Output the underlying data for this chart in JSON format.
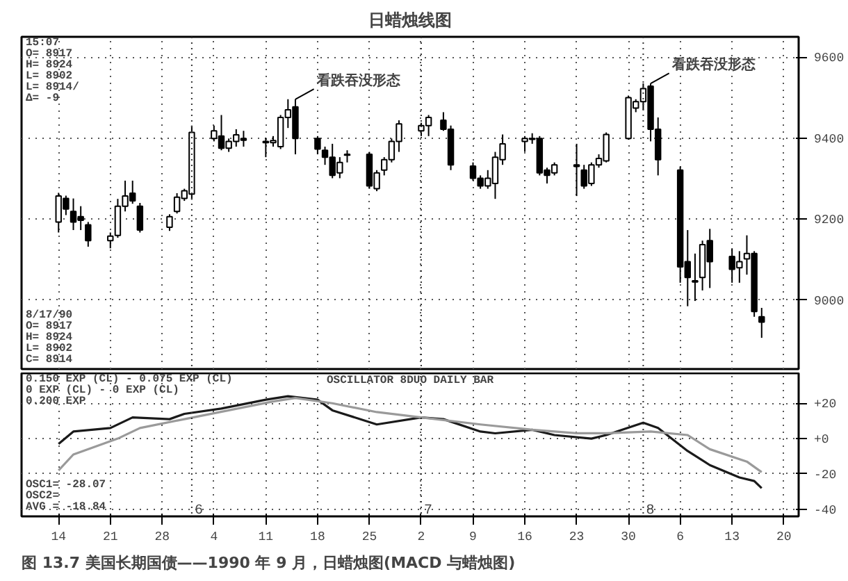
{
  "chart_data": [
    {
      "type": "candlestick",
      "title": "日蜡烛线图",
      "x": [
        "1990-05-14",
        "1990-05-15",
        "1990-05-16",
        "1990-05-17",
        "1990-05-18",
        "1990-05-21",
        "1990-05-22",
        "1990-05-23",
        "1990-05-24",
        "1990-05-25",
        "1990-05-29",
        "1990-05-30",
        "1990-05-31",
        "1990-06-01",
        "1990-06-04",
        "1990-06-05",
        "1990-06-06",
        "1990-06-07",
        "1990-06-08",
        "1990-06-11",
        "1990-06-12",
        "1990-06-13",
        "1990-06-14",
        "1990-06-15",
        "1990-06-18",
        "1990-06-19",
        "1990-06-20",
        "1990-06-21",
        "1990-06-22",
        "1990-06-25",
        "1990-06-26",
        "1990-06-27",
        "1990-06-28",
        "1990-06-29",
        "1990-07-02",
        "1990-07-03",
        "1990-07-05",
        "1990-07-06",
        "1990-07-09",
        "1990-07-10",
        "1990-07-11",
        "1990-07-12",
        "1990-07-13",
        "1990-07-16",
        "1990-07-17",
        "1990-07-18",
        "1990-07-19",
        "1990-07-20",
        "1990-07-23",
        "1990-07-24",
        "1990-07-25",
        "1990-07-26",
        "1990-07-27",
        "1990-07-30",
        "1990-07-31",
        "1990-08-01",
        "1990-08-02",
        "1990-08-03",
        "1990-08-06",
        "1990-08-07",
        "1990-08-08",
        "1990-08-09",
        "1990-08-10",
        "1990-08-13",
        "1990-08-14",
        "1990-08-15",
        "1990-08-16",
        "1990-08-17"
      ],
      "ohlc": [
        [
          9193,
          9265,
          9167,
          9257
        ],
        [
          9251,
          9258,
          9210,
          9225
        ],
        [
          9219,
          9251,
          9173,
          9193
        ],
        [
          9206,
          9232,
          9173,
          9197
        ],
        [
          9186,
          9193,
          9132,
          9147
        ],
        [
          9147,
          9167,
          9128,
          9158
        ],
        [
          9160,
          9250,
          9154,
          9232
        ],
        [
          9232,
          9295,
          9219,
          9257
        ],
        [
          9264,
          9295,
          9238,
          9245
        ],
        [
          9232,
          9240,
          9167,
          9173
        ],
        [
          9180,
          9212,
          9171,
          9206
        ],
        [
          9219,
          9264,
          9214,
          9254
        ],
        [
          9251,
          9275,
          9245,
          9270
        ],
        [
          9262,
          9431,
          9248,
          9414
        ],
        [
          9399,
          9431,
          9392,
          9418
        ],
        [
          9405,
          9457,
          9370,
          9375
        ],
        [
          9375,
          9399,
          9366,
          9392
        ],
        [
          9392,
          9422,
          9379,
          9408
        ],
        [
          9399,
          9418,
          9379,
          9395
        ],
        [
          9392,
          9401,
          9353,
          9389
        ],
        [
          9389,
          9405,
          9379,
          9394
        ],
        [
          9379,
          9457,
          9373,
          9451
        ],
        [
          9451,
          9496,
          9425,
          9470
        ],
        [
          9477,
          9496,
          9360,
          9399
        ],
        [
          9399,
          9405,
          9360,
          9373
        ],
        [
          9370,
          9379,
          9334,
          9353
        ],
        [
          9353,
          9386,
          9301,
          9308
        ],
        [
          9314,
          9353,
          9301,
          9340
        ],
        [
          9360,
          9370,
          9340,
          9358
        ],
        [
          9360,
          9366,
          9275,
          9282
        ],
        [
          9275,
          9321,
          9269,
          9314
        ],
        [
          9321,
          9353,
          9308,
          9347
        ],
        [
          9347,
          9399,
          9340,
          9392
        ],
        [
          9392,
          9444,
          9366,
          9435
        ],
        [
          9418,
          9438,
          9405,
          9431
        ],
        [
          9431,
          9457,
          9405,
          9451
        ],
        [
          9444,
          9464,
          9418,
          9422
        ],
        [
          9422,
          9431,
          9321,
          9334
        ],
        [
          9331,
          9340,
          9295,
          9301
        ],
        [
          9301,
          9308,
          9275,
          9282
        ],
        [
          9282,
          9321,
          9275,
          9301
        ],
        [
          9288,
          9366,
          9250,
          9353
        ],
        [
          9347,
          9409,
          9334,
          9386
        ],
        [
          9392,
          9405,
          9366,
          9399
        ],
        [
          9399,
          9412,
          9386,
          9397
        ],
        [
          9399,
          9405,
          9308,
          9314
        ],
        [
          9321,
          9327,
          9288,
          9308
        ],
        [
          9314,
          9340,
          9308,
          9334
        ],
        [
          9334,
          9386,
          9257,
          9330
        ],
        [
          9321,
          9334,
          9275,
          9282
        ],
        [
          9288,
          9340,
          9282,
          9334
        ],
        [
          9334,
          9360,
          9327,
          9350
        ],
        [
          9344,
          9414,
          9340,
          9409
        ],
        [
          9399,
          9505,
          9396,
          9500
        ],
        [
          9474,
          9496,
          9464,
          9490
        ],
        [
          9490,
          9535,
          9470,
          9522
        ],
        [
          9528,
          9535,
          9392,
          9422
        ],
        [
          9422,
          9451,
          9308,
          9347
        ],
        [
          9321,
          9330,
          9043,
          9082
        ],
        [
          9095,
          9173,
          8985,
          9056
        ],
        [
          9048,
          9115,
          8998,
          9045
        ],
        [
          9056,
          9147,
          9024,
          9137
        ],
        [
          9147,
          9176,
          9030,
          9095
        ],
        [
          9108,
          9128,
          9043,
          9076
        ],
        [
          9080,
          9121,
          9043,
          9095
        ],
        [
          9102,
          9160,
          9063,
          9115
        ],
        [
          9115,
          9121,
          8959,
          8972
        ],
        [
          8959,
          8981,
          8907,
          8946
        ]
      ],
      "xlim": [
        "1990-05-09",
        "1990-08-22"
      ],
      "ylim": [
        8830,
        9650
      ],
      "yticks": [
        9000,
        9200,
        9400,
        9600
      ],
      "xticks": [
        "1990-05-14",
        "1990-05-21",
        "1990-05-28",
        "1990-06-04",
        "1990-06-11",
        "1990-06-18",
        "1990-06-25",
        "1990-07-02",
        "1990-07-09",
        "1990-07-16",
        "1990-07-23",
        "1990-07-30",
        "1990-08-06",
        "1990-08-13",
        "1990-08-20"
      ],
      "tick_labels": "y",
      "grid": true,
      "ref_lines": [
        {
          "axis": "x",
          "value": "1990-06-01"
        },
        {
          "axis": "x",
          "value": "1990-07-02"
        },
        {
          "axis": "x",
          "value": "1990-08-01"
        }
      ],
      "annotations": [
        "15:07",
        "O= 8917",
        "H= 8924",
        "L= 8902",
        "L= 8914/",
        "Δ=   -9",
        "8/17/90",
        "O=  8917",
        "H=  8924",
        "L=  8902",
        "C=  8914",
        {
          "text": "看跌吞没形态",
          "x": "1990-06-15",
          "y": 9496
        },
        {
          "text": "看跌吞没形态",
          "x": "1990-08-02",
          "y": 9535
        }
      ]
    },
    {
      "type": "line",
      "title": "图 13.7  美国长期国债——1990 年 9 月，日蜡烛图(MACD 与蜡烛图)",
      "subtitle": "OSCILLATOR 8DUO DAILY BAR",
      "series": [
        {
          "color": "#1a1a1a",
          "x": [
            "1990-05-14",
            "1990-05-16",
            "1990-05-21",
            "1990-05-24",
            "1990-05-29",
            "1990-05-31",
            "1990-06-05",
            "1990-06-11",
            "1990-06-14",
            "1990-06-18",
            "1990-06-20",
            "1990-06-26",
            "1990-07-02",
            "1990-07-05",
            "1990-07-10",
            "1990-07-12",
            "1990-07-17",
            "1990-07-20",
            "1990-07-25",
            "1990-07-27",
            "1990-08-01",
            "1990-08-03",
            "1990-08-07",
            "1990-08-10",
            "1990-08-14",
            "1990-08-16",
            "1990-08-17"
          ],
          "values": [
            -3,
            4,
            6,
            12,
            11,
            14,
            17,
            22,
            24,
            22,
            16,
            8,
            12,
            11,
            4,
            3,
            5,
            2,
            0,
            2,
            9,
            6,
            -7,
            -15,
            -22,
            -24,
            -28
          ]
        },
        {
          "color": "#9a9a9a",
          "x": [
            "1990-05-14",
            "1990-05-16",
            "1990-05-22",
            "1990-05-25",
            "1990-05-31",
            "1990-06-06",
            "1990-06-12",
            "1990-06-15",
            "1990-06-20",
            "1990-06-26",
            "1990-07-02",
            "1990-07-10",
            "1990-07-17",
            "1990-07-23",
            "1990-07-27",
            "1990-08-02",
            "1990-08-07",
            "1990-08-10",
            "1990-08-15",
            "1990-08-17"
          ],
          "values": [
            -18,
            -9,
            0,
            6,
            11,
            16,
            21,
            23,
            20,
            15,
            12,
            8,
            5,
            3,
            3,
            4,
            2,
            -6,
            -13,
            -19
          ]
        }
      ],
      "xlim": [
        "1990-05-09",
        "1990-08-22"
      ],
      "ylim": [
        -44,
        37
      ],
      "yticks": [
        {
          "value": 20,
          "label": "+20"
        },
        {
          "value": 0,
          "label": "+0"
        },
        {
          "value": -20,
          "label": "-20"
        },
        {
          "value": -40,
          "label": "-40"
        }
      ],
      "xticks": [
        {
          "value": "1990-05-14",
          "label": "14"
        },
        {
          "value": "1990-05-21",
          "label": "21"
        },
        {
          "value": "1990-05-28",
          "label": "28"
        },
        {
          "value": "1990-06-04",
          "label": "4"
        },
        {
          "value": "1990-06-11",
          "label": "11"
        },
        {
          "value": "1990-06-18",
          "label": "18"
        },
        {
          "value": "1990-06-25",
          "label": "25"
        },
        {
          "value": "1990-07-02",
          "label": "2"
        },
        {
          "value": "1990-07-09",
          "label": "9"
        },
        {
          "value": "1990-07-16",
          "label": "16"
        },
        {
          "value": "1990-07-23",
          "label": "23"
        },
        {
          "value": "1990-07-30",
          "label": "30"
        },
        {
          "value": "1990-08-06",
          "label": "6"
        },
        {
          "value": "1990-08-13",
          "label": "13"
        },
        {
          "value": "1990-08-20",
          "label": "20"
        }
      ],
      "grid": true,
      "line_style": "solid",
      "ref_lines": [
        {
          "axis": "x",
          "value": "1990-06-01",
          "label": "6"
        },
        {
          "axis": "x",
          "value": "1990-07-02",
          "label": "7"
        },
        {
          "axis": "x",
          "value": "1990-08-01",
          "label": "8"
        }
      ],
      "annotations": [
        "0.150 EXP (CL) - 0.075 EXP (CL)",
        "0 EXP (CL) -  0 EXP (CL)",
        "0.200 EXP",
        "OSC1=    -28.07",
        "OSC2=",
        "AVG =    -18.84"
      ]
    }
  ]
}
